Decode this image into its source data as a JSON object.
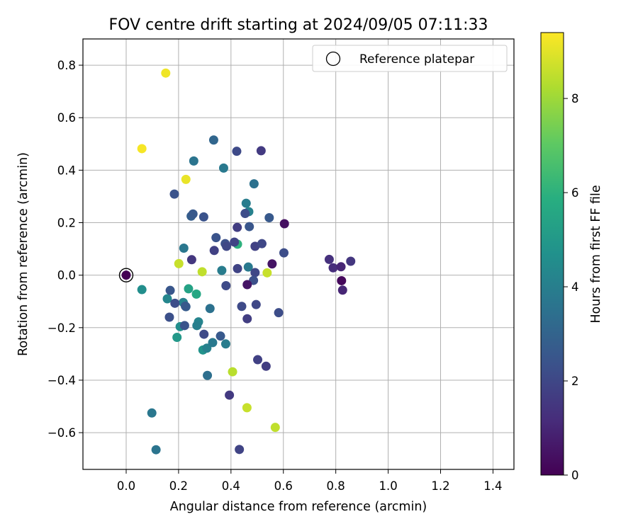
{
  "chart_data": {
    "type": "scatter",
    "title": "FOV centre drift starting at 2024/09/05 07:11:33",
    "xlabel": "Angular distance from reference (arcmin)",
    "ylabel": "Rotation from reference (arcmin)",
    "xlim": [
      -0.165,
      1.48
    ],
    "ylim": [
      -0.74,
      0.9
    ],
    "x_ticks": [
      0.0,
      0.2,
      0.4,
      0.6,
      0.8,
      1.0,
      1.2,
      1.4
    ],
    "x_tick_labels": [
      "0.0",
      "0.2",
      "0.4",
      "0.6",
      "0.8",
      "1.0",
      "1.2",
      "1.4"
    ],
    "y_ticks": [
      -0.6,
      -0.4,
      -0.2,
      0.0,
      0.2,
      0.4,
      0.6,
      0.8
    ],
    "y_tick_labels": [
      "−0.6",
      "−0.4",
      "−0.2",
      "0.0",
      "0.2",
      "0.4",
      "0.6",
      "0.8"
    ],
    "grid": true,
    "legend": {
      "placement": "top-right",
      "entries": [
        "Reference platepar"
      ]
    },
    "colorbar": {
      "label": "Hours from first FF file",
      "colormap": "viridis",
      "range": [
        0,
        9.4
      ],
      "ticks": [
        0,
        2,
        4,
        6,
        8
      ],
      "tick_labels": [
        "0",
        "2",
        "4",
        "6",
        "8"
      ]
    },
    "reference_point": {
      "x": 0.0,
      "y": 0.0,
      "hours": 0.0
    },
    "points": [
      {
        "x": 0.151,
        "y": 0.77,
        "h": 9.2
      },
      {
        "x": 0.06,
        "y": 0.482,
        "h": 9.3
      },
      {
        "x": 0.228,
        "y": 0.365,
        "h": 9.1
      },
      {
        "x": 0.201,
        "y": 0.044,
        "h": 8.6
      },
      {
        "x": 0.29,
        "y": 0.013,
        "h": 8.5
      },
      {
        "x": 0.538,
        "y": 0.009,
        "h": 8.6
      },
      {
        "x": 0.406,
        "y": -0.368,
        "h": 8.4
      },
      {
        "x": 0.461,
        "y": -0.505,
        "h": 8.6
      },
      {
        "x": 0.569,
        "y": -0.58,
        "h": 8.5
      },
      {
        "x": 0.425,
        "y": 0.118,
        "h": 6.0
      },
      {
        "x": 0.238,
        "y": -0.052,
        "h": 5.4
      },
      {
        "x": 0.268,
        "y": -0.072,
        "h": 5.6
      },
      {
        "x": 0.194,
        "y": -0.237,
        "h": 5.0
      },
      {
        "x": 0.293,
        "y": -0.285,
        "h": 4.8
      },
      {
        "x": 0.06,
        "y": -0.055,
        "h": 4.6
      },
      {
        "x": 0.157,
        "y": -0.09,
        "h": 4.3
      },
      {
        "x": 0.218,
        "y": -0.104,
        "h": 4.1
      },
      {
        "x": 0.206,
        "y": -0.196,
        "h": 4.6
      },
      {
        "x": 0.276,
        "y": -0.178,
        "h": 4.2
      },
      {
        "x": 0.27,
        "y": -0.192,
        "h": 4.0
      },
      {
        "x": 0.308,
        "y": -0.278,
        "h": 4.1
      },
      {
        "x": 0.33,
        "y": -0.257,
        "h": 3.8
      },
      {
        "x": 0.38,
        "y": -0.262,
        "h": 3.9
      },
      {
        "x": 0.098,
        "y": -0.525,
        "h": 3.7
      },
      {
        "x": 0.114,
        "y": -0.665,
        "h": 3.6
      },
      {
        "x": 0.31,
        "y": -0.382,
        "h": 3.4
      },
      {
        "x": 0.258,
        "y": 0.435,
        "h": 3.6
      },
      {
        "x": 0.372,
        "y": 0.408,
        "h": 3.8
      },
      {
        "x": 0.22,
        "y": 0.103,
        "h": 3.7
      },
      {
        "x": 0.365,
        "y": 0.018,
        "h": 3.9
      },
      {
        "x": 0.458,
        "y": 0.274,
        "h": 3.9
      },
      {
        "x": 0.468,
        "y": 0.242,
        "h": 4.1
      },
      {
        "x": 0.488,
        "y": 0.348,
        "h": 3.5
      },
      {
        "x": 0.466,
        "y": 0.031,
        "h": 3.8
      },
      {
        "x": 0.334,
        "y": 0.515,
        "h": 3.1
      },
      {
        "x": 0.32,
        "y": -0.127,
        "h": 3.5
      },
      {
        "x": 0.228,
        "y": -0.12,
        "h": 2.8
      },
      {
        "x": 0.422,
        "y": 0.472,
        "h": 2.1
      },
      {
        "x": 0.515,
        "y": 0.474,
        "h": 1.6
      },
      {
        "x": 0.184,
        "y": 0.309,
        "h": 2.4
      },
      {
        "x": 0.248,
        "y": 0.225,
        "h": 2.8
      },
      {
        "x": 0.255,
        "y": 0.233,
        "h": 2.6
      },
      {
        "x": 0.296,
        "y": 0.222,
        "h": 2.4
      },
      {
        "x": 0.454,
        "y": 0.235,
        "h": 2.2
      },
      {
        "x": 0.546,
        "y": 0.219,
        "h": 2.6
      },
      {
        "x": 0.424,
        "y": 0.182,
        "h": 1.7
      },
      {
        "x": 0.47,
        "y": 0.185,
        "h": 2.5
      },
      {
        "x": 0.343,
        "y": 0.143,
        "h": 2.4
      },
      {
        "x": 0.378,
        "y": 0.12,
        "h": 2.3
      },
      {
        "x": 0.383,
        "y": 0.11,
        "h": 2.0
      },
      {
        "x": 0.413,
        "y": 0.126,
        "h": 1.9
      },
      {
        "x": 0.492,
        "y": 0.11,
        "h": 1.8
      },
      {
        "x": 0.518,
        "y": 0.12,
        "h": 2.0
      },
      {
        "x": 0.336,
        "y": 0.094,
        "h": 1.8
      },
      {
        "x": 0.602,
        "y": 0.085,
        "h": 2.2
      },
      {
        "x": 0.25,
        "y": 0.059,
        "h": 1.5
      },
      {
        "x": 0.425,
        "y": 0.025,
        "h": 1.9
      },
      {
        "x": 0.492,
        "y": 0.01,
        "h": 2.0
      },
      {
        "x": 0.486,
        "y": -0.02,
        "h": 2.3
      },
      {
        "x": 0.381,
        "y": -0.04,
        "h": 2.1
      },
      {
        "x": 0.168,
        "y": -0.058,
        "h": 2.5
      },
      {
        "x": 0.186,
        "y": -0.107,
        "h": 2.2
      },
      {
        "x": 0.226,
        "y": -0.118,
        "h": 2.6
      },
      {
        "x": 0.165,
        "y": -0.16,
        "h": 2.3
      },
      {
        "x": 0.223,
        "y": -0.192,
        "h": 2.4
      },
      {
        "x": 0.297,
        "y": -0.225,
        "h": 2.1
      },
      {
        "x": 0.36,
        "y": -0.232,
        "h": 2.6
      },
      {
        "x": 0.441,
        "y": -0.119,
        "h": 2.1
      },
      {
        "x": 0.496,
        "y": -0.112,
        "h": 2.0
      },
      {
        "x": 0.462,
        "y": -0.166,
        "h": 1.7
      },
      {
        "x": 0.582,
        "y": -0.143,
        "h": 2.2
      },
      {
        "x": 0.502,
        "y": -0.322,
        "h": 1.8
      },
      {
        "x": 0.534,
        "y": -0.347,
        "h": 1.7
      },
      {
        "x": 0.394,
        "y": -0.457,
        "h": 1.6
      },
      {
        "x": 0.432,
        "y": -0.664,
        "h": 1.9
      },
      {
        "x": 0.604,
        "y": 0.196,
        "h": 0.4
      },
      {
        "x": 0.557,
        "y": 0.043,
        "h": 0.5
      },
      {
        "x": 0.462,
        "y": -0.036,
        "h": 0.5
      },
      {
        "x": 0.775,
        "y": 0.06,
        "h": 1.3
      },
      {
        "x": 0.79,
        "y": 0.028,
        "h": 1.2
      },
      {
        "x": 0.82,
        "y": 0.032,
        "h": 1.0
      },
      {
        "x": 0.857,
        "y": 0.053,
        "h": 1.5
      },
      {
        "x": 0.822,
        "y": -0.021,
        "h": 0.2
      },
      {
        "x": 0.826,
        "y": -0.057,
        "h": 1.0
      }
    ]
  }
}
